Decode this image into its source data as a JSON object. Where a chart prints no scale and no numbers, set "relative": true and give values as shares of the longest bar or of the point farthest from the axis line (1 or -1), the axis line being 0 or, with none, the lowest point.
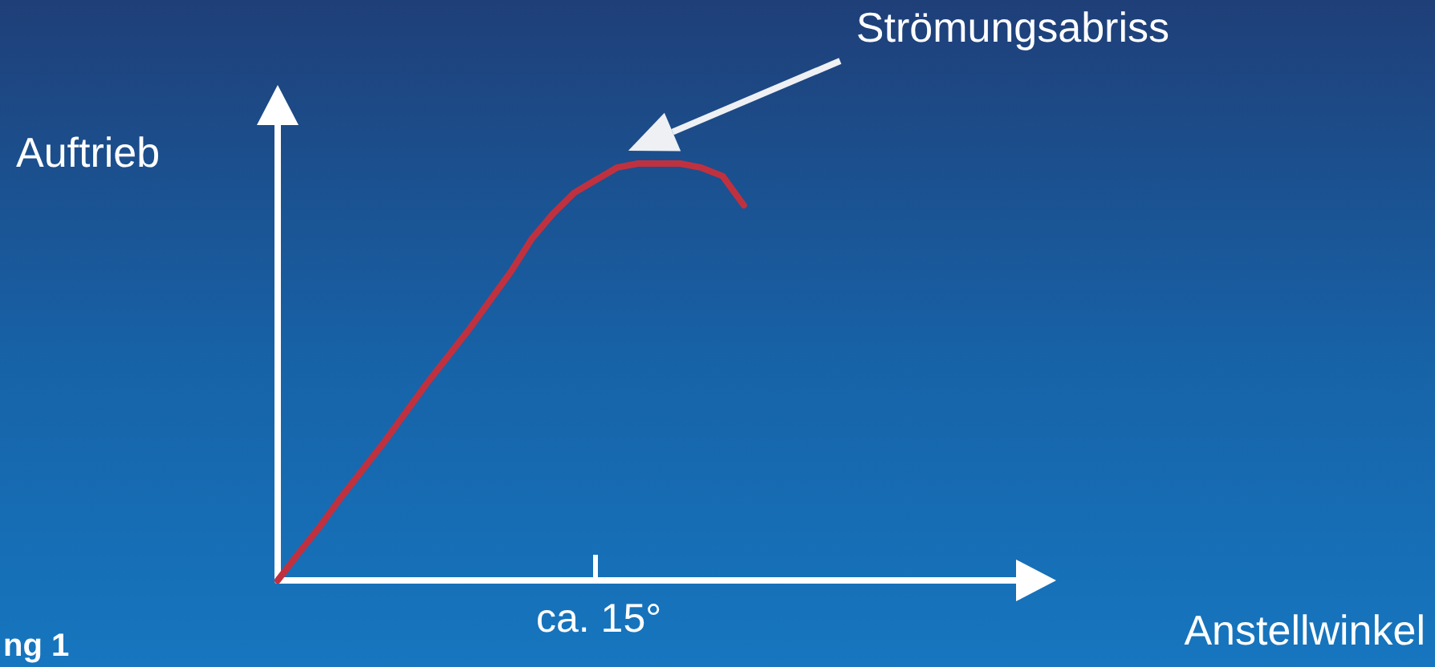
{
  "chart_data": {
    "type": "line",
    "relative": true,
    "xlabel": "Anstellwinkel",
    "ylabel": "Auftrieb",
    "categories": [
      null,
      null,
      null,
      null,
      null,
      null,
      null,
      null,
      null,
      null,
      null,
      null,
      null,
      null,
      null,
      null,
      null,
      null,
      null,
      null,
      null,
      null,
      null,
      null,
      null,
      null,
      null,
      null,
      null,
      null,
      null,
      null,
      null,
      null,
      null,
      null
    ],
    "series": [
      {
        "color": "#c0313f",
        "values": [
          0,
          0.066,
          0.13,
          0.2,
          0.265,
          0.33,
          0.4,
          0.47,
          0.535,
          0.6,
          0.67,
          0.74,
          0.82,
          0.88,
          0.93,
          0.96,
          0.99,
          1,
          1,
          1,
          0.99,
          0.97,
          0.9,
          null,
          null,
          null,
          null,
          null,
          null,
          null,
          null,
          null,
          null,
          null,
          null,
          null
        ]
      }
    ],
    "annotations": [
      "Strömungsabriss",
      "ca. 15°",
      "ng 1"
    ],
    "grid": false,
    "marker": "none",
    "line_style": "solid"
  }
}
